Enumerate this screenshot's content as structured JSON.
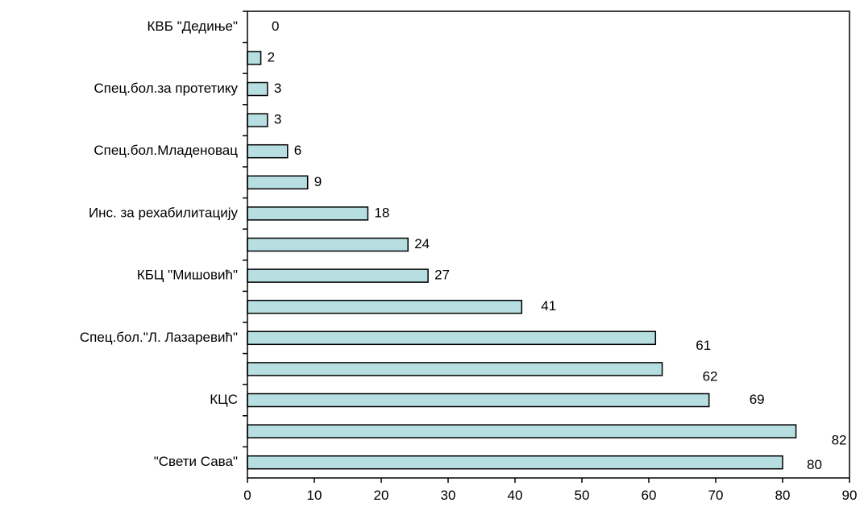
{
  "chart_data": {
    "type": "bar",
    "orientation": "horizontal",
    "categories": [
      "КВБ \"Дедиње\"",
      "",
      "Спец.бол.за протетику",
      "",
      "Спец.бол.Младеновац",
      "",
      "Инс. за рехабилитацију",
      "",
      "КБЦ \"Мишовић\"",
      "",
      "Спец.бол.\"Л. Лазаревић\"",
      "",
      "КЦС",
      "",
      "\"Свети Сава\""
    ],
    "values": [
      0,
      2,
      3,
      3,
      6,
      9,
      18,
      24,
      27,
      41,
      61,
      62,
      69,
      82,
      80
    ],
    "value_labels": [
      "0",
      "2",
      "3",
      "3",
      "6",
      "9",
      "18",
      "24",
      "27",
      "41",
      "61",
      "62",
      "69",
      "82",
      "80"
    ],
    "x_ticks": [
      "0",
      "10",
      "20",
      "30",
      "40",
      "50",
      "60",
      "70",
      "80",
      "90"
    ],
    "xlim": [
      0,
      90
    ],
    "bar_color": "#b7dee0",
    "grid": false,
    "legend": "none"
  }
}
